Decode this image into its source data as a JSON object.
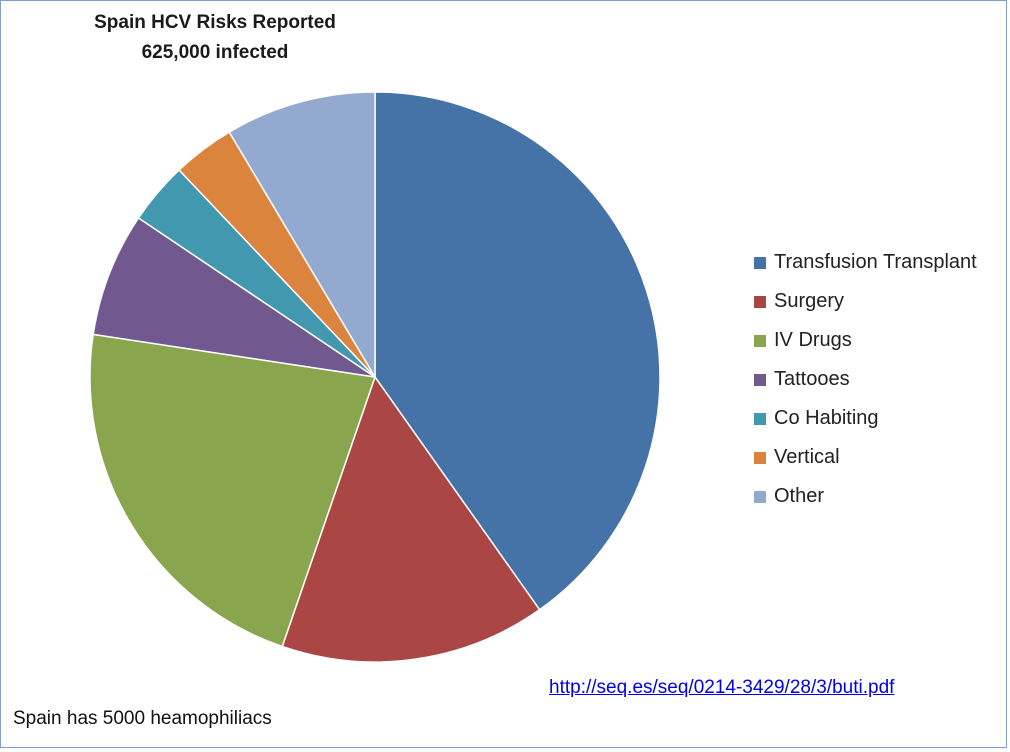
{
  "chart_data": {
    "type": "pie",
    "title": "Spain HCV Risks Reported",
    "subtitle": "625,000 infected",
    "legend_position": "right",
    "slices": [
      {
        "label": "Transfusion Transplant",
        "value": 40,
        "color": "#4572A7"
      },
      {
        "label": "Surgery",
        "value": 15,
        "color": "#AA4643"
      },
      {
        "label": "IV Drugs",
        "value": 22,
        "color": "#89A54E"
      },
      {
        "label": "Tattooes",
        "value": 7,
        "color": "#71588F"
      },
      {
        "label": "Co Habiting",
        "value": 3.5,
        "color": "#4198AF"
      },
      {
        "label": "Vertical",
        "value": 3.5,
        "color": "#DB843D"
      },
      {
        "label": "Other",
        "value": 8.5,
        "color": "#93A9CF"
      }
    ]
  },
  "source_link": "http://seq.es/seq/0214-3429/28/3/buti.pdf",
  "footnote": "Spain has 5000  heamophiliacs"
}
